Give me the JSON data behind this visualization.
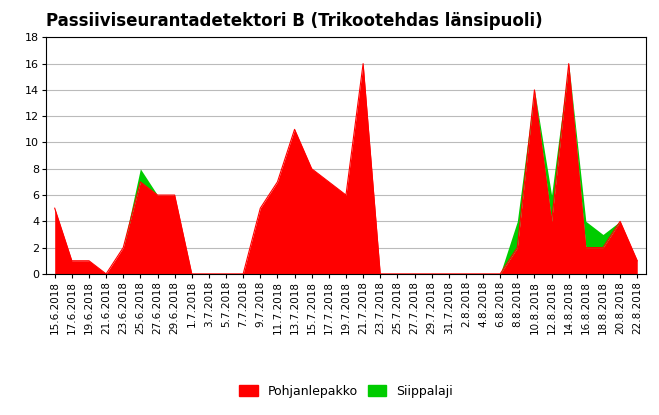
{
  "title": "Passiiviseurantadetektori B (Trikootehdas länsipuoli)",
  "dates": [
    "15.6.2018",
    "17.6.2018",
    "19.6.2018",
    "21.6.2018",
    "23.6.2018",
    "25.6.2018",
    "27.6.2018",
    "29.6.2018",
    "1.7.2018",
    "3.7.2018",
    "5.7.2018",
    "7.7.2018",
    "9.7.2018",
    "11.7.2018",
    "13.7.2018",
    "15.7.2018",
    "17.7.2018",
    "19.7.2018",
    "21.7.2018",
    "23.7.2018",
    "25.7.2018",
    "27.7.2018",
    "29.7.2018",
    "31.7.2018",
    "2.8.2018",
    "4.8.2018",
    "6.8.2018",
    "8.8.2018",
    "10.8.2018",
    "12.8.2018",
    "14.8.2018",
    "16.8.2018",
    "18.8.2018",
    "20.8.2018",
    "22.8.2018"
  ],
  "pohjanlepakko": [
    5,
    1,
    1,
    0,
    2,
    7,
    6,
    6,
    0,
    0,
    0,
    0,
    5,
    7,
    11,
    8,
    7,
    6,
    16,
    0,
    0,
    0,
    0,
    0,
    0,
    0,
    0,
    2,
    14,
    4,
    16,
    2,
    2,
    4,
    1
  ],
  "siippalaji": [
    0,
    0,
    0,
    0,
    0,
    1,
    0,
    0,
    0,
    0,
    0,
    0,
    0,
    0,
    0,
    0,
    0,
    0,
    0,
    0,
    0,
    0,
    0,
    0,
    0,
    0,
    0,
    2,
    0,
    2,
    0,
    2,
    1,
    0,
    0
  ],
  "ylim": [
    0,
    18
  ],
  "yticks": [
    0,
    2,
    4,
    6,
    8,
    10,
    12,
    14,
    16,
    18
  ],
  "pohjanlepakko_color": "#FF0000",
  "siippalaji_color": "#00CC00",
  "background_color": "#FFFFFF",
  "grid_color": "#BBBBBB",
  "legend_pohjanlepakko": "Pohjanlepakko",
  "legend_siippalaji": "Siippalaji",
  "title_fontsize": 12,
  "tick_fontsize": 7.5,
  "legend_fontsize": 9
}
